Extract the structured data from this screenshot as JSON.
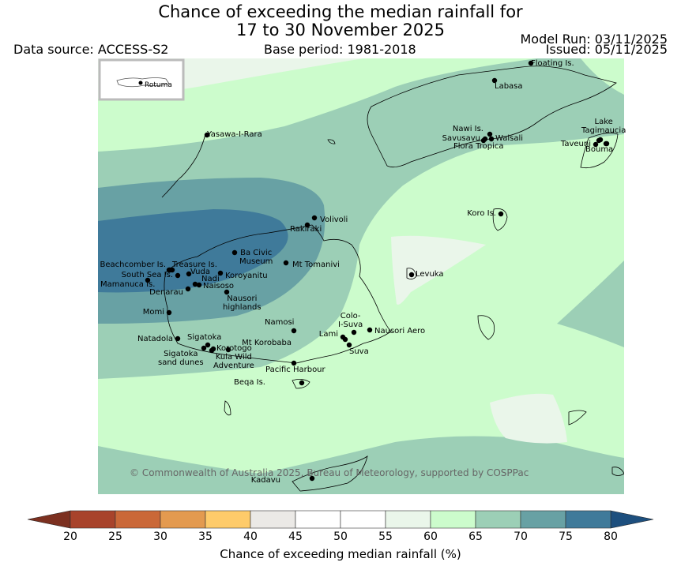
{
  "header": {
    "title_line1": "Chance of exceeding the median rainfall for",
    "title_line2": "17 to 30 November 2025",
    "data_source": "Data source: ACCESS-S2",
    "base_period": "Base period: 1981-2018",
    "model_run": "Model Run: 03/11/2025",
    "issued": "Issued: 05/11/2025"
  },
  "inset": {
    "label": "Rotuma"
  },
  "places": [
    {
      "id": "floating-is",
      "label": "Floating Is."
    },
    {
      "id": "labasa",
      "label": "Labasa"
    },
    {
      "id": "yasawa",
      "label": "Yasawa-I-Rara"
    },
    {
      "id": "nawi",
      "label": "Nawi Is."
    },
    {
      "id": "savusavu",
      "label": "Savusavu"
    },
    {
      "id": "waisali",
      "label": "Waisali"
    },
    {
      "id": "flora",
      "label": "Flora Tropica"
    },
    {
      "id": "lake-tagimaucia",
      "label": "Lake\nTagimaucia"
    },
    {
      "id": "taveuni",
      "label": "Taveuni"
    },
    {
      "id": "bouma",
      "label": "Bouma"
    },
    {
      "id": "koro",
      "label": "Koro Is."
    },
    {
      "id": "volivoli",
      "label": "Volivoli"
    },
    {
      "id": "rakiraki",
      "label": "Rakiraki"
    },
    {
      "id": "ba-civic",
      "label": "Ba Civic\nMuseum"
    },
    {
      "id": "mt-tomanivi",
      "label": "Mt Tomanivi"
    },
    {
      "id": "beachcomber",
      "label": "Beachcomber Is."
    },
    {
      "id": "treasure",
      "label": "Treasure Is."
    },
    {
      "id": "south-sea",
      "label": "South Sea Is."
    },
    {
      "id": "vuda",
      "label": "Vuda"
    },
    {
      "id": "koroyanitu",
      "label": "Koroyanitu"
    },
    {
      "id": "mamanuca",
      "label": "Mamanuca Is."
    },
    {
      "id": "nadi",
      "label": "Nadi"
    },
    {
      "id": "naisoso",
      "label": "Naisoso"
    },
    {
      "id": "denarau",
      "label": "Denarau"
    },
    {
      "id": "nausori-highlands",
      "label": "Nausori\nhighlands"
    },
    {
      "id": "levuka",
      "label": "Levuka"
    },
    {
      "id": "momi",
      "label": "Momi"
    },
    {
      "id": "namosi",
      "label": "Namosi"
    },
    {
      "id": "colo-i-suva",
      "label": "Colo-\nI-Suva"
    },
    {
      "id": "lami",
      "label": "Lami"
    },
    {
      "id": "nausori-aero",
      "label": "Nausori Aero"
    },
    {
      "id": "mt-korobaba",
      "label": "Mt Korobaba"
    },
    {
      "id": "suva",
      "label": "Suva"
    },
    {
      "id": "natadola",
      "label": "Natadola"
    },
    {
      "id": "sigatoka",
      "label": "Sigatoka"
    },
    {
      "id": "korotogo",
      "label": "Korotogo"
    },
    {
      "id": "sigatoka-dunes",
      "label": "Sigatoka\nsand dunes"
    },
    {
      "id": "kula",
      "label": "Kula Wild\nAdventure"
    },
    {
      "id": "pacific-harbour",
      "label": "Pacific Harbour"
    },
    {
      "id": "beqa",
      "label": "Beqa Is."
    },
    {
      "id": "kadavu",
      "label": "Kadavu"
    }
  ],
  "copyright": "© Commonwealth of Australia 2025, Bureau of Meteorology, supported by COSPPac",
  "colorbar": {
    "title": "Chance of exceeding median rainfall (%)",
    "ticks": [
      "20",
      "25",
      "30",
      "35",
      "40",
      "45",
      "50",
      "55",
      "60",
      "65",
      "70",
      "75",
      "80"
    ],
    "colors": [
      "#a8432b",
      "#ca6838",
      "#e39a4f",
      "#fecb6a",
      "#ebe9e6",
      "#ffffff",
      "#ffffff",
      "#eaf6ea",
      "#ccfccc",
      "#9ccfb6",
      "#68a1a4",
      "#3f7a9a"
    ],
    "under_color": "#7c3020",
    "over_color": "#1d4f7e"
  },
  "colors": {
    "land_outline": "#000000",
    "class_55_60": "#eaf6ea",
    "class_60_65": "#ccfccc",
    "class_65_70": "#9ccfb6",
    "class_70_75": "#68a1a4",
    "class_75_80": "#3f7a9a"
  }
}
